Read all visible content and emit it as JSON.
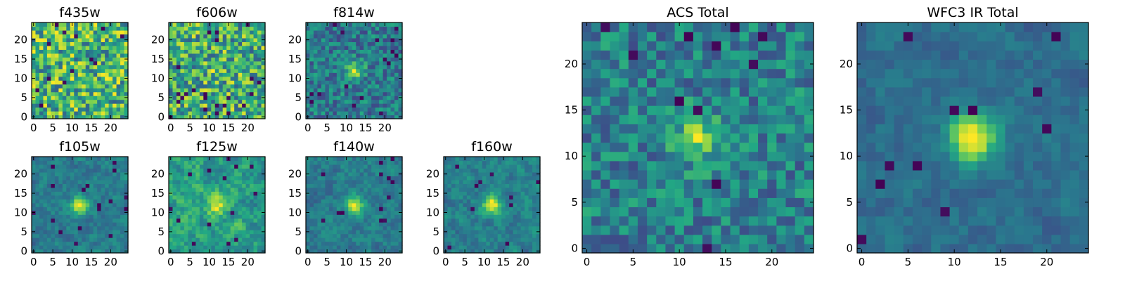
{
  "chart_data": [
    {
      "type": "heatmap",
      "title": "f435w",
      "grid_size": 25,
      "seed": 11,
      "blob": 0.0,
      "noise": 1.0,
      "smooth": 0,
      "dark_rate": 0.03,
      "xticks": [
        0,
        5,
        10,
        15,
        20
      ],
      "yticks": [
        0,
        5,
        10,
        15,
        20
      ]
    },
    {
      "type": "heatmap",
      "title": "f606w",
      "grid_size": 25,
      "seed": 23,
      "blob": 0.15,
      "noise": 1.0,
      "smooth": 0,
      "dark_rate": 0.03,
      "xticks": [
        0,
        5,
        10,
        15,
        20
      ],
      "yticks": [
        0,
        5,
        10,
        15,
        20
      ]
    },
    {
      "type": "heatmap",
      "title": "f814w",
      "grid_size": 25,
      "seed": 37,
      "blob": 0.9,
      "noise": 0.9,
      "smooth": 0,
      "dark_rate": 0.03,
      "xticks": [
        0,
        5,
        10,
        15,
        20
      ],
      "yticks": [
        0,
        5,
        10,
        15,
        20
      ]
    },
    {
      "type": "heatmap",
      "title": "f105w",
      "grid_size": 25,
      "seed": 41,
      "blob": 1.0,
      "noise": 0.7,
      "smooth": 1,
      "dark_rate": 0.02,
      "xticks": [
        0,
        5,
        10,
        15,
        20
      ],
      "yticks": [
        0,
        5,
        10,
        15,
        20
      ]
    },
    {
      "type": "heatmap",
      "title": "f125w",
      "grid_size": 25,
      "seed": 53,
      "blob": 0.6,
      "noise": 0.8,
      "smooth": 1,
      "dark_rate": 0.025,
      "xticks": [
        0,
        5,
        10,
        15,
        20
      ],
      "yticks": [
        0,
        5,
        10,
        15,
        20
      ]
    },
    {
      "type": "heatmap",
      "title": "f140w",
      "grid_size": 25,
      "seed": 67,
      "blob": 0.9,
      "noise": 0.7,
      "smooth": 1,
      "dark_rate": 0.02,
      "xticks": [
        0,
        5,
        10,
        15,
        20
      ],
      "yticks": [
        0,
        5,
        10,
        15,
        20
      ]
    },
    {
      "type": "heatmap",
      "title": "f160w",
      "grid_size": 25,
      "seed": 79,
      "blob": 1.0,
      "noise": 0.7,
      "smooth": 1,
      "dark_rate": 0.025,
      "xticks": [
        0,
        5,
        10,
        15,
        20
      ],
      "yticks": [
        0,
        5,
        10,
        15,
        20
      ]
    },
    {
      "type": "heatmap",
      "title": "ACS Total",
      "grid_size": 25,
      "seed": 97,
      "blob": 0.8,
      "noise": 0.8,
      "smooth": 0,
      "dark_rate": 0.02,
      "xticks": [
        0,
        5,
        10,
        15,
        20
      ],
      "yticks": [
        0,
        5,
        10,
        15,
        20
      ]
    },
    {
      "type": "heatmap",
      "title": "WFC3 IR Total",
      "grid_size": 25,
      "seed": 113,
      "blob": 1.3,
      "noise": 0.5,
      "smooth": 1,
      "dark_rate": 0.02,
      "xticks": [
        0,
        5,
        10,
        15,
        20
      ],
      "yticks": [
        0,
        5,
        10,
        15,
        20
      ]
    }
  ],
  "colormap": [
    "#440154",
    "#414487",
    "#2a788e",
    "#22a884",
    "#7ad151",
    "#fde725"
  ]
}
